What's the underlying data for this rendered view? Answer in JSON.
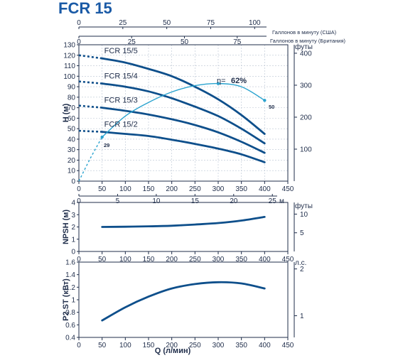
{
  "chart_data": [
    {
      "id": "head",
      "type": "line",
      "title": "FCR 15",
      "xlabel": "",
      "ylabel": "H (м)",
      "xlim": [
        0,
        450
      ],
      "ylim": [
        0,
        130
      ],
      "xticks": [
        0,
        50,
        100,
        150,
        200,
        250,
        300,
        350,
        400,
        450
      ],
      "yticks": [
        0,
        10,
        20,
        30,
        40,
        50,
        60,
        70,
        80,
        90,
        100,
        110,
        120,
        130
      ],
      "grid": true,
      "top_axis_us": {
        "label": "Галлонов в минуту (США)",
        "ticks": [
          0,
          25,
          50,
          75,
          100
        ]
      },
      "top_axis_uk": {
        "label": "Галлонов в минуту (Британия)",
        "ticks": [
          0,
          25,
          50,
          75
        ]
      },
      "bottom_m3_axis": {
        "label": "м",
        "ticks": [
          0,
          5,
          10,
          15,
          20,
          25
        ]
      },
      "right_axis": {
        "label": "футы",
        "ticks": [
          100,
          200,
          300,
          400
        ]
      },
      "series": [
        {
          "name": "FCR 15/5",
          "x": [
            50,
            100,
            150,
            200,
            250,
            300,
            350,
            400
          ],
          "y": [
            117,
            113,
            107,
            100,
            90,
            78,
            63,
            45
          ],
          "dashed_x": [
            0,
            50
          ],
          "dashed_y": [
            120,
            117
          ]
        },
        {
          "name": "FCR 15/4",
          "x": [
            50,
            100,
            150,
            200,
            250,
            300,
            350,
            400
          ],
          "y": [
            93,
            90,
            85.5,
            79,
            71,
            62,
            50,
            36
          ],
          "dashed_x": [
            0,
            50
          ],
          "dashed_y": [
            95,
            93
          ]
        },
        {
          "name": "FCR 15/3",
          "x": [
            50,
            100,
            150,
            200,
            250,
            300,
            350,
            400
          ],
          "y": [
            70,
            67,
            63.5,
            59,
            53.5,
            46.5,
            37.5,
            27
          ],
          "dashed_x": [
            0,
            50
          ],
          "dashed_y": [
            72,
            70
          ]
        },
        {
          "name": "FCR 15/2",
          "x": [
            50,
            100,
            150,
            200,
            250,
            300,
            350,
            400
          ],
          "y": [
            47,
            45,
            43,
            39.5,
            35.5,
            31,
            25.5,
            18
          ],
          "dashed_x": [
            0,
            50
          ],
          "dashed_y": [
            48,
            47
          ]
        }
      ],
      "efficiency": {
        "label": "η=",
        "value_label": "62%",
        "left_label": "29",
        "right_label": "50",
        "x": [
          0,
          25,
          50,
          100,
          150,
          200,
          250,
          300,
          350,
          400
        ],
        "y": [
          0,
          22,
          42,
          62,
          75,
          85,
          91,
          93,
          90,
          77
        ]
      }
    },
    {
      "id": "npsh",
      "type": "line",
      "ylabel": "NPSH (м)",
      "xlim": [
        0,
        450
      ],
      "ylim": [
        0,
        4
      ],
      "xticks": [
        0,
        50,
        100,
        150,
        200,
        250,
        300,
        350,
        400,
        450
      ],
      "yticks": [
        0,
        1,
        2,
        3,
        4
      ],
      "right_axis": {
        "label": "футы",
        "ticks": [
          5,
          10
        ]
      },
      "series": [
        {
          "name": "",
          "x": [
            50,
            100,
            150,
            200,
            250,
            300,
            350,
            400
          ],
          "y": [
            2.0,
            2.02,
            2.05,
            2.1,
            2.2,
            2.32,
            2.52,
            2.82
          ]
        }
      ]
    },
    {
      "id": "power",
      "type": "line",
      "ylabel": "P2 ST (кВт)",
      "xlabel": "Q (л/мин)",
      "xlim": [
        0,
        450
      ],
      "ylim": [
        0.4,
        1.6
      ],
      "xticks": [
        0,
        50,
        100,
        150,
        200,
        250,
        300,
        350,
        400,
        450
      ],
      "yticks": [
        0.4,
        0.6,
        0.8,
        1.0,
        1.2,
        1.4,
        1.6
      ],
      "right_axis": {
        "label": "л.с.",
        "ticks": [
          1,
          2
        ]
      },
      "series": [
        {
          "name": "",
          "x": [
            50,
            100,
            150,
            200,
            250,
            300,
            350,
            400
          ],
          "y": [
            0.67,
            0.88,
            1.05,
            1.18,
            1.25,
            1.28,
            1.26,
            1.18
          ]
        }
      ]
    }
  ]
}
